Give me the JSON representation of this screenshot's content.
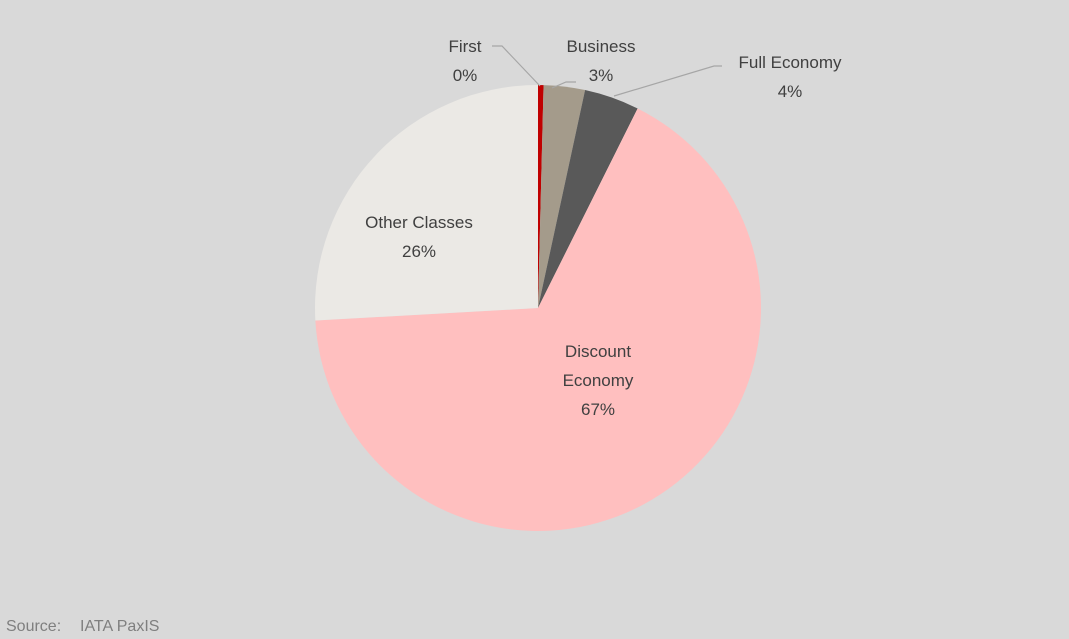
{
  "chart_data": {
    "type": "pie",
    "categories": [
      "First",
      "Business",
      "Full Economy",
      "Discount Economy",
      "Other Classes"
    ],
    "values": [
      0.4,
      3,
      4,
      67,
      26
    ],
    "value_labels": [
      "0%",
      "3%",
      "4%",
      "67%",
      "26%"
    ],
    "colors": [
      "#c00000",
      "#a49b8b",
      "#595959",
      "#ffbfbf",
      "#ebe9e5"
    ],
    "source_label": "Source:",
    "source": "IATA PaxIS"
  }
}
